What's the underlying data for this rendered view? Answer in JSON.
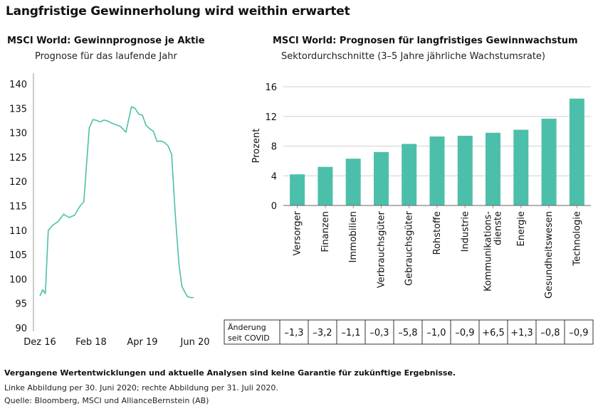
{
  "title": "Langfristige Gewinnerholung wird weithin erwartet",
  "colors": {
    "line": "#4cbfaa",
    "bar": "#4cbfaa",
    "grid": "#d0d0d0",
    "text": "#111111"
  },
  "chart_data": [
    {
      "type": "line",
      "title": "MSCI World: Gewinnprognose je Aktie",
      "subtitle": "Prognose für das laufende Jahr",
      "ylim": [
        90,
        140
      ],
      "yticks": [
        90,
        95,
        100,
        105,
        110,
        115,
        120,
        125,
        130,
        135,
        140
      ],
      "xlim": [
        0,
        42
      ],
      "xticks": [
        {
          "label": "Dez 16",
          "x": 0
        },
        {
          "label": "Feb 18",
          "x": 14
        },
        {
          "label": "Apr 19",
          "x": 28
        },
        {
          "label": "Jun 20",
          "x": 42
        }
      ],
      "series": [
        {
          "name": "Gewinnprognose je Aktie",
          "x": [
            0,
            0.8,
            1.5,
            2.3,
            3.5,
            5,
            6.5,
            8,
            9.5,
            11,
            12,
            13.5,
            14.5,
            15.5,
            16.5,
            17.5,
            18.5,
            19.5,
            20.5,
            22,
            23.5,
            25,
            26,
            27,
            28,
            29,
            30,
            31,
            32,
            33,
            34,
            35,
            36,
            37,
            38,
            38.8,
            39.6,
            40.3,
            41.2,
            42
          ],
          "y": [
            96.5,
            97.8,
            97.0,
            110.0,
            111.0,
            111.8,
            113.3,
            112.6,
            113.1,
            115.0,
            115.8,
            131.0,
            132.7,
            132.5,
            132.2,
            132.6,
            132.4,
            132.0,
            131.7,
            131.3,
            130.1,
            135.3,
            135.0,
            133.8,
            133.6,
            131.5,
            130.8,
            130.3,
            128.2,
            128.3,
            128.0,
            127.3,
            125.6,
            113.0,
            103.0,
            98.5,
            97.3,
            96.4,
            96.2,
            96.2
          ]
        }
      ]
    },
    {
      "type": "bar",
      "title": "MSCI World: Prognosen für langfristiges Gewinnwachstum",
      "subtitle": "Sektordurchschnitte (3–5 Jahre jährliche Wachstumsrate)",
      "ylabel": "Prozent",
      "ylim": [
        0,
        16
      ],
      "yticks": [
        0,
        4,
        8,
        12,
        16
      ],
      "categories": [
        "Versorger",
        "Finanzen",
        "Immobilien",
        "Verbrauchsgüter",
        "Gebrauchsgüter",
        "Rohstoffe",
        "Industrie",
        "Kommunikations-dienste",
        "Energie",
        "Gesundheitswesen",
        "Technologie"
      ],
      "category_lines": [
        [
          "Versorger"
        ],
        [
          "Finanzen"
        ],
        [
          "Immobilien"
        ],
        [
          "Verbrauchsgüter"
        ],
        [
          "Gebrauchsgüter"
        ],
        [
          "Rohstoffe"
        ],
        [
          "Industrie"
        ],
        [
          "Kommunikations-",
          "dienste"
        ],
        [
          "Energie"
        ],
        [
          "Gesundheitswesen"
        ],
        [
          "Technologie"
        ]
      ],
      "values": [
        4.2,
        5.2,
        6.3,
        7.2,
        8.3,
        9.3,
        9.4,
        9.8,
        10.2,
        11.7,
        14.4
      ]
    }
  ],
  "table": {
    "label_lines": [
      "Änderung",
      "seit COVID"
    ],
    "values": [
      "–1,3",
      "–3,2",
      "–1,1",
      "–0,3",
      "–5,8",
      "–1,0",
      "–0,9",
      "+6,5",
      "+1,3",
      "–0,8",
      "–0,9"
    ]
  },
  "footnotes": {
    "disclaimer": "Vergangene Wertentwicklungen und aktuelle Analysen sind keine Garantie für zukünftige Ergebnisse.",
    "dates": "Linke Abbildung per 30. Juni 2020; rechte Abbildung per 31. Juli 2020.",
    "source": "Quelle: Bloomberg, MSCI und AllianceBernstein (AB)"
  }
}
